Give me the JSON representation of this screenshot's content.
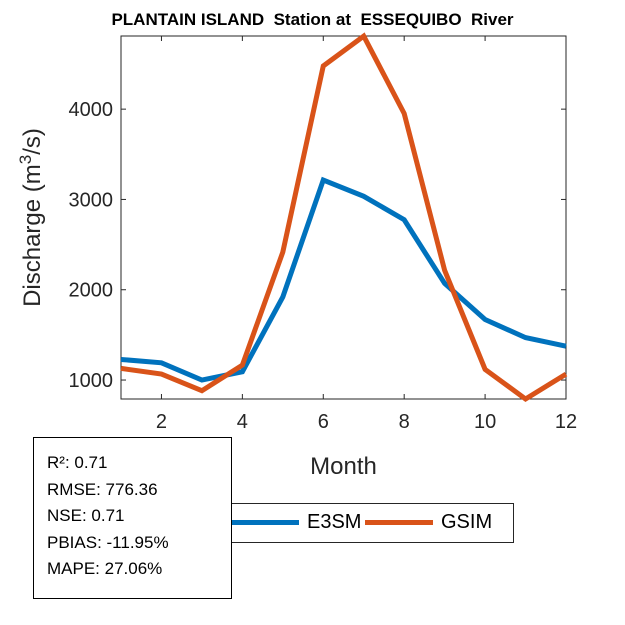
{
  "chart_data": {
    "type": "line",
    "title": "PLANTAIN ISLAND  Station at  ESSEQUIBO  River",
    "xlabel": "Month",
    "ylabel": "Discharge (m³/s)",
    "ylabel_base": "Discharge (m",
    "ylabel_sup": "3",
    "ylabel_end": "/s)",
    "x": [
      1,
      2,
      3,
      4,
      5,
      6,
      7,
      8,
      9,
      10,
      11,
      12
    ],
    "xlim": [
      1,
      12
    ],
    "ylim": [
      790,
      4810
    ],
    "xticks": [
      2,
      4,
      6,
      8,
      10,
      12
    ],
    "yticks": [
      1000,
      2000,
      3000,
      4000
    ],
    "grid": false,
    "legend_placement": "bottom-outside",
    "series": [
      {
        "name": "E3SM",
        "color": "#0072BD",
        "values": [
          1228,
          1191,
          1000,
          1092,
          1920,
          3215,
          3035,
          2775,
          2070,
          1670,
          1470,
          1375
        ]
      },
      {
        "name": "GSIM",
        "color": "#D95319",
        "values": [
          1129,
          1066,
          882,
          1165,
          2417,
          4478,
          4809,
          3952,
          2215,
          1118,
          790,
          1066
        ]
      }
    ]
  },
  "stats": [
    "R²: 0.71",
    "RMSE: 776.36",
    "NSE: 0.71",
    "PBIAS: -11.95%",
    "MAPE: 27.06%"
  ]
}
